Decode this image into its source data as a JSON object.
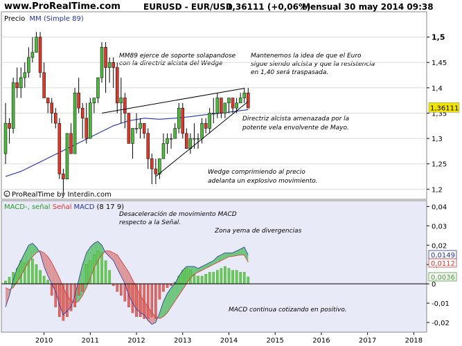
{
  "header": {
    "site": "www.ProRealTime.com",
    "symbol": "EURUSD - EUR/USD",
    "value": "1,36111 (+0,06%)",
    "period": "Mensual  30 may 2014 09:38"
  },
  "colors": {
    "up": "#4cb83c",
    "down": "#d93a2b",
    "ma": "#2233aa",
    "macd_line": "#2233aa",
    "signal_line": "#dd3333",
    "hist_pos": "#66cc55",
    "hist_neg": "#e06a66",
    "fill_bull": "#5bc06a",
    "fill_bear": "#d98b8b",
    "price_bg": "#ffffff",
    "macd_bg": "#e8eaf8",
    "current_price_tag": "#f1e400"
  },
  "icons": {
    "copyright": "copyright-icon"
  },
  "chart_data": [
    {
      "type": "candlestick",
      "legend": {
        "price": "Precio",
        "ma": "MM (Simple 89)"
      },
      "copyright": "ProRealTime by Interdin.com",
      "ylim": [
        1.18,
        1.55
      ],
      "y_ticks": [
        "1,2",
        "1,25",
        "1,3",
        "1,35",
        "1,4",
        "1,45",
        "1,5"
      ],
      "current_price": "1,36111",
      "annotations": [
        "MM89 ejerce de soporte solapandose",
        "con la directriz alcista del Wedge",
        "Mantenemos la idea de que el Euro",
        "sigue siendo alcista y que la resistencia",
        "en 1,40 será traspasada.",
        "Directriz alcista amenazada por la",
        "potente vela envolvente de Mayo.",
        "Wedge comprimiendo al precio",
        "adelanta un explosivo movimiento."
      ],
      "candles_start": "2009-03",
      "candles": [
        [
          1.27,
          1.37,
          1.25,
          1.33
        ],
        [
          1.33,
          1.34,
          1.29,
          1.32
        ],
        [
          1.32,
          1.42,
          1.31,
          1.41
        ],
        [
          1.41,
          1.44,
          1.38,
          1.4
        ],
        [
          1.4,
          1.44,
          1.38,
          1.42
        ],
        [
          1.42,
          1.45,
          1.4,
          1.43
        ],
        [
          1.43,
          1.48,
          1.42,
          1.46
        ],
        [
          1.46,
          1.5,
          1.45,
          1.47
        ],
        [
          1.47,
          1.51,
          1.47,
          1.5
        ],
        [
          1.5,
          1.51,
          1.42,
          1.43
        ],
        [
          1.43,
          1.45,
          1.38,
          1.38
        ],
        [
          1.38,
          1.38,
          1.35,
          1.37
        ],
        [
          1.37,
          1.38,
          1.33,
          1.35
        ],
        [
          1.35,
          1.36,
          1.32,
          1.33
        ],
        [
          1.33,
          1.34,
          1.22,
          1.23
        ],
        [
          1.23,
          1.24,
          1.19,
          1.22
        ],
        [
          1.22,
          1.31,
          1.22,
          1.31
        ],
        [
          1.31,
          1.33,
          1.27,
          1.27
        ],
        [
          1.27,
          1.4,
          1.27,
          1.39
        ],
        [
          1.39,
          1.42,
          1.35,
          1.36
        ],
        [
          1.36,
          1.37,
          1.3,
          1.34
        ],
        [
          1.34,
          1.37,
          1.29,
          1.3
        ],
        [
          1.3,
          1.38,
          1.3,
          1.37
        ],
        [
          1.37,
          1.38,
          1.35,
          1.38
        ],
        [
          1.38,
          1.42,
          1.37,
          1.42
        ],
        [
          1.42,
          1.49,
          1.41,
          1.48
        ],
        [
          1.48,
          1.49,
          1.39,
          1.44
        ],
        [
          1.44,
          1.46,
          1.41,
          1.45
        ],
        [
          1.45,
          1.46,
          1.4,
          1.44
        ],
        [
          1.44,
          1.45,
          1.35,
          1.37
        ],
        [
          1.37,
          1.42,
          1.33,
          1.38
        ],
        [
          1.38,
          1.39,
          1.32,
          1.35
        ],
        [
          1.35,
          1.35,
          1.29,
          1.29
        ],
        [
          1.29,
          1.32,
          1.26,
          1.32
        ],
        [
          1.32,
          1.35,
          1.31,
          1.32
        ],
        [
          1.32,
          1.34,
          1.3,
          1.33
        ],
        [
          1.33,
          1.33,
          1.3,
          1.31
        ],
        [
          1.31,
          1.32,
          1.24,
          1.26
        ],
        [
          1.26,
          1.27,
          1.21,
          1.24
        ],
        [
          1.24,
          1.26,
          1.21,
          1.23
        ],
        [
          1.23,
          1.26,
          1.22,
          1.26
        ],
        [
          1.26,
          1.31,
          1.26,
          1.29
        ],
        [
          1.29,
          1.31,
          1.27,
          1.3
        ],
        [
          1.3,
          1.31,
          1.28,
          1.3
        ],
        [
          1.3,
          1.33,
          1.3,
          1.32
        ],
        [
          1.32,
          1.37,
          1.31,
          1.36
        ],
        [
          1.36,
          1.37,
          1.3,
          1.31
        ],
        [
          1.31,
          1.32,
          1.28,
          1.28
        ],
        [
          1.28,
          1.31,
          1.27,
          1.3
        ],
        [
          1.3,
          1.33,
          1.28,
          1.3
        ],
        [
          1.3,
          1.31,
          1.28,
          1.3
        ],
        [
          1.3,
          1.34,
          1.29,
          1.33
        ],
        [
          1.33,
          1.34,
          1.31,
          1.32
        ],
        [
          1.32,
          1.36,
          1.31,
          1.35
        ],
        [
          1.35,
          1.38,
          1.33,
          1.35
        ],
        [
          1.35,
          1.39,
          1.34,
          1.38
        ],
        [
          1.38,
          1.38,
          1.34,
          1.35
        ],
        [
          1.35,
          1.37,
          1.34,
          1.37
        ],
        [
          1.37,
          1.38,
          1.35,
          1.38
        ],
        [
          1.38,
          1.38,
          1.35,
          1.36
        ],
        [
          1.36,
          1.38,
          1.35,
          1.37
        ],
        [
          1.37,
          1.39,
          1.37,
          1.38
        ],
        [
          1.38,
          1.4,
          1.37,
          1.39
        ],
        [
          1.39,
          1.4,
          1.36,
          1.36
        ]
      ],
      "ma89": [
        [
          0,
          1.225
        ],
        [
          4,
          1.235
        ],
        [
          8,
          1.25
        ],
        [
          12,
          1.265
        ],
        [
          16,
          1.28
        ],
        [
          20,
          1.295
        ],
        [
          24,
          1.31
        ],
        [
          28,
          1.325
        ],
        [
          32,
          1.335
        ],
        [
          36,
          1.34
        ],
        [
          40,
          1.338
        ],
        [
          44,
          1.34
        ],
        [
          48,
          1.343
        ],
        [
          52,
          1.347
        ],
        [
          56,
          1.35
        ],
        [
          60,
          1.354
        ],
        [
          63,
          1.357
        ]
      ],
      "wedge": {
        "upper": [
          [
            25,
            1.35
          ],
          [
            62,
            1.399
          ]
        ],
        "lower": [
          [
            39,
            1.225
          ],
          [
            63,
            1.373
          ]
        ]
      }
    },
    {
      "type": "macd",
      "legend": {
        "prefix": "MACD-, señal ",
        "signal": "Señal",
        "macd": "MACD",
        "params": "(8 17 9)"
      },
      "ylim": [
        -0.025,
        0.043
      ],
      "y_ticks": [
        "0,04",
        "0,03",
        "0,02",
        "0,01",
        "0",
        "-0,01",
        "-0,02"
      ],
      "tags": [
        "0,0149",
        "0,0112",
        "0,0036"
      ],
      "annotations": [
        "Desaceleración de movimiento MACD",
        "respecto a la Señal.",
        "Zona yema de divergencias",
        "MACD continua cotizando en positivo."
      ],
      "macd": [
        -0.012,
        -0.006,
        0.002,
        0.008,
        0.012,
        0.016,
        0.02,
        0.021,
        0.019,
        0.016,
        0.009,
        0.004,
        0.0,
        -0.004,
        -0.011,
        -0.016,
        -0.014,
        -0.012,
        -0.006,
        0.002,
        0.01,
        0.016,
        0.019,
        0.021,
        0.022,
        0.02,
        0.016,
        0.014,
        0.012,
        0.008,
        0.004,
        0.0,
        -0.006,
        -0.01,
        -0.013,
        -0.015,
        -0.016,
        -0.019,
        -0.021,
        -0.02,
        -0.015,
        -0.009,
        -0.005,
        -0.002,
        0.0,
        0.004,
        0.007,
        0.009,
        0.009,
        0.009,
        0.008,
        0.009,
        0.01,
        0.011,
        0.012,
        0.014,
        0.015,
        0.016,
        0.016,
        0.016,
        0.017,
        0.018,
        0.019,
        0.0149
      ],
      "signal": [
        -0.002,
        -0.003,
        -0.002,
        0.001,
        0.004,
        0.008,
        0.011,
        0.014,
        0.016,
        0.017,
        0.016,
        0.014,
        0.011,
        0.007,
        0.003,
        -0.002,
        -0.006,
        -0.009,
        -0.01,
        -0.009,
        -0.006,
        -0.002,
        0.003,
        0.008,
        0.012,
        0.015,
        0.017,
        0.017,
        0.016,
        0.015,
        0.012,
        0.009,
        0.006,
        0.002,
        -0.002,
        -0.006,
        -0.009,
        -0.012,
        -0.015,
        -0.017,
        -0.018,
        -0.017,
        -0.015,
        -0.012,
        -0.009,
        -0.006,
        -0.003,
        0.0,
        0.003,
        0.005,
        0.006,
        0.007,
        0.008,
        0.009,
        0.01,
        0.011,
        0.012,
        0.013,
        0.014,
        0.0142,
        0.0146,
        0.0149,
        0.0149,
        0.0112
      ],
      "histogram": [
        0.0015,
        0.0035,
        0.006,
        0.008,
        0.012,
        0.011,
        0.012,
        0.013,
        0.01,
        0.007,
        0.004,
        0.002,
        -0.006,
        -0.012,
        -0.017,
        -0.019,
        -0.017,
        -0.014,
        -0.012,
        -0.006,
        -0.004,
        0.01,
        0.012,
        0.015,
        0.017,
        0.016,
        0.012,
        0.007,
        -0.001,
        -0.004,
        -0.006,
        -0.009,
        -0.012,
        -0.015,
        -0.017,
        -0.017,
        -0.018,
        -0.018,
        -0.017,
        -0.018,
        -0.008,
        -0.004,
        -0.002,
        -0.001,
        0.001,
        0.004,
        0.007,
        0.008,
        0.007,
        0.005,
        0.004,
        0.004,
        0.005,
        0.006,
        0.006,
        0.007,
        0.008,
        0.009,
        0.008,
        0.007,
        0.007,
        0.006,
        0.006,
        0.0036
      ]
    }
  ],
  "x_axis": {
    "years": [
      "2010",
      "2011",
      "2012",
      "2013",
      "2014",
      "2015",
      "2016",
      "2017",
      "2018"
    ]
  }
}
